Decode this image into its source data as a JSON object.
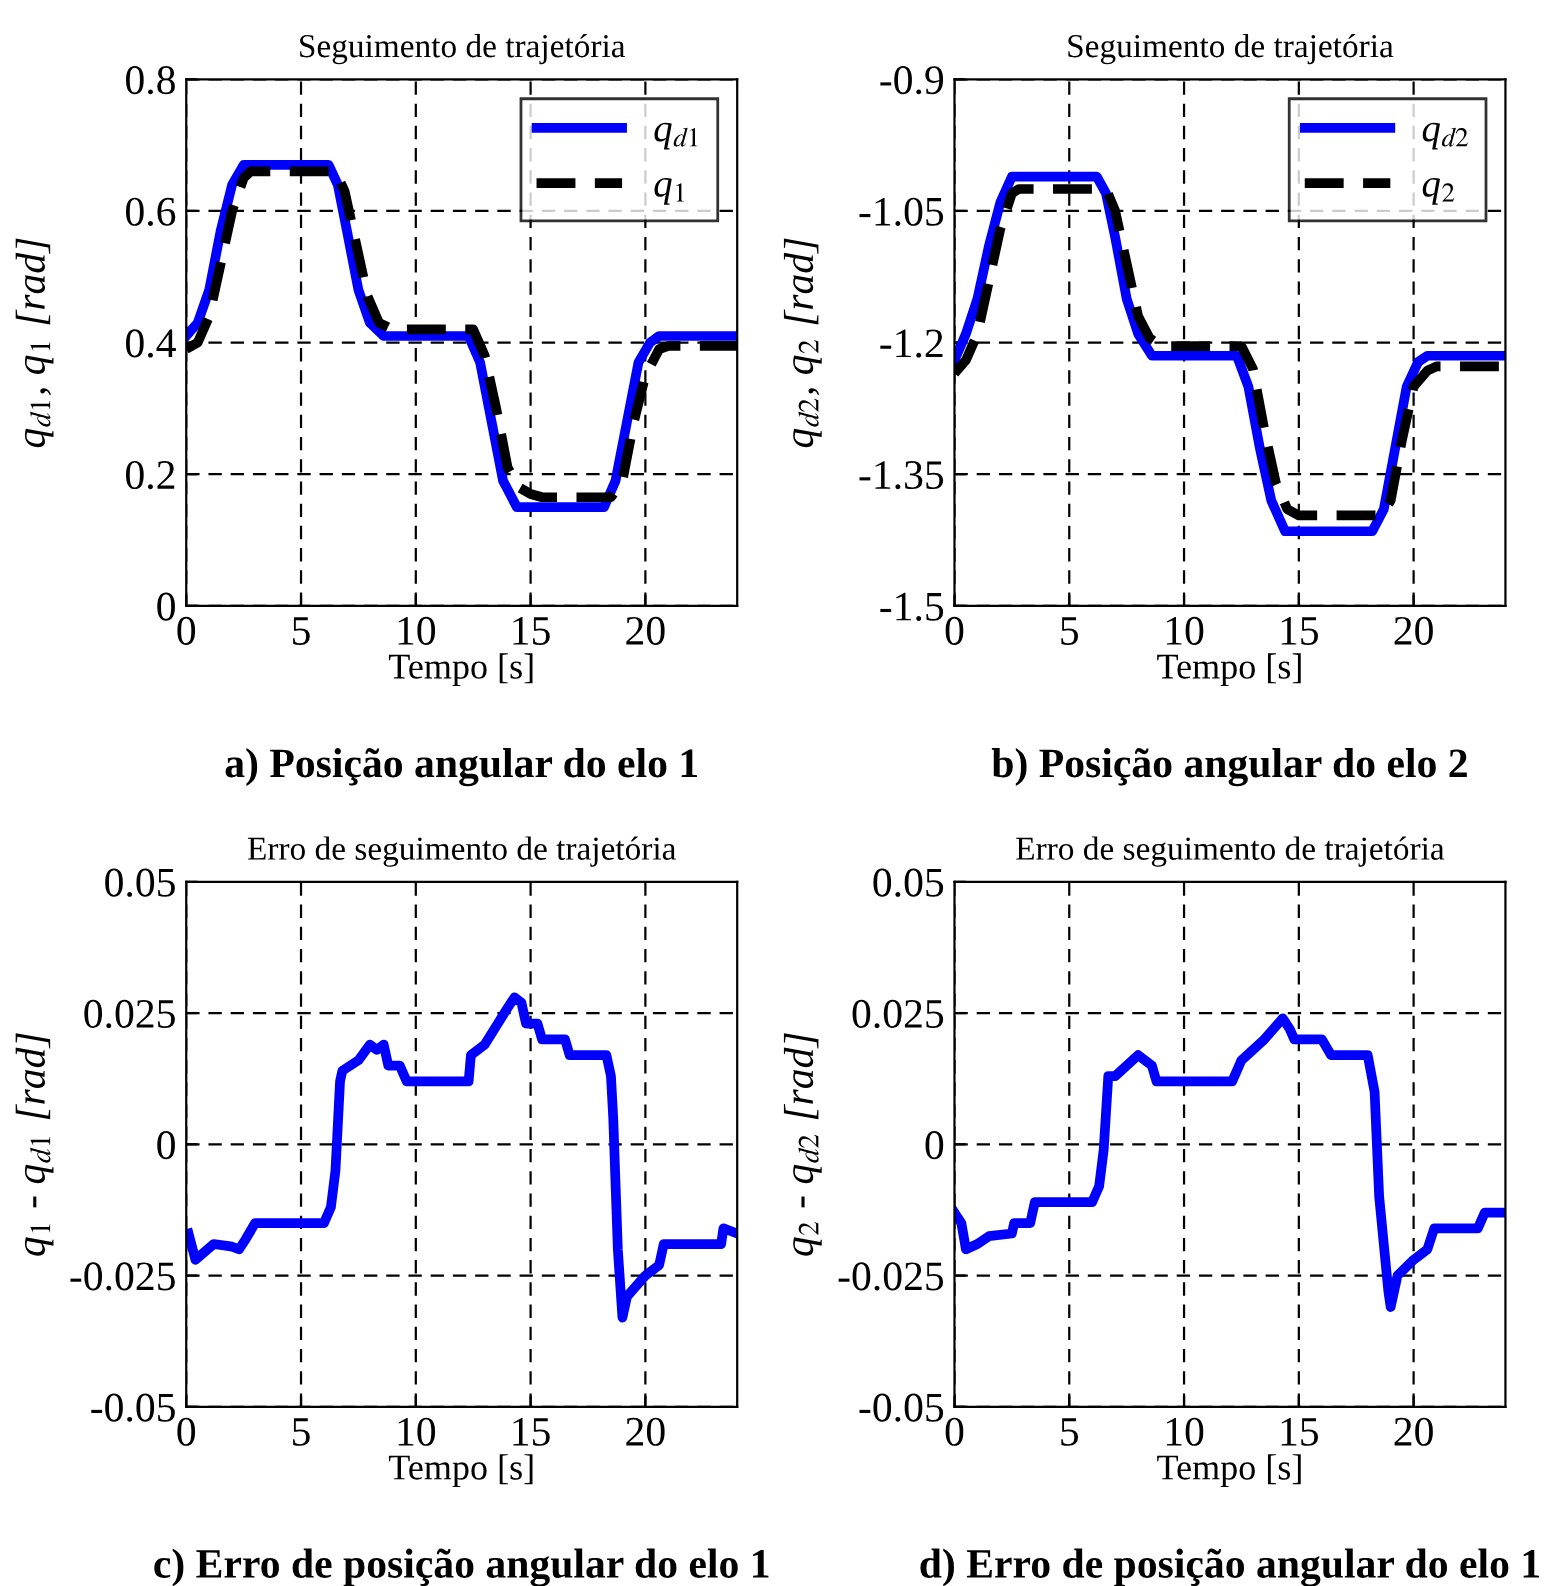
{
  "chart_data": [
    {
      "type": "line",
      "title": "Seguimento de trajetória",
      "xlabel": "Tempo [s]",
      "ylabel": "q$_{d1}$, q$_{1}$ [rad]",
      "annotations": [
        "a) Posição angular do elo 1"
      ],
      "xlim": [
        0,
        24
      ],
      "xticks": [
        0,
        5,
        10,
        15,
        20
      ],
      "ylim": [
        0,
        0.8
      ],
      "yticks": [
        0,
        0.2,
        0.4,
        0.6,
        0.8
      ],
      "grid": true,
      "legend": "top right",
      "series": [
        {
          "name": "q$_{d1}$",
          "color": "#0000ff",
          "line_style": "solid",
          "x": [
            0,
            0.5,
            1,
            1.5,
            2,
            2.5,
            6.2,
            6.6,
            7,
            7.5,
            8,
            8.6,
            12.3,
            12.8,
            13.3,
            13.8,
            14.4,
            18.2,
            18.7,
            19.2,
            19.7,
            20.2,
            20.6,
            24
          ],
          "values": [
            0.41,
            0.43,
            0.48,
            0.57,
            0.64,
            0.67,
            0.67,
            0.64,
            0.57,
            0.48,
            0.43,
            0.41,
            0.41,
            0.37,
            0.28,
            0.19,
            0.15,
            0.15,
            0.19,
            0.28,
            0.37,
            0.4,
            0.41,
            0.41
          ]
        },
        {
          "name": "q$_{1}$",
          "color": "#000000",
          "line_style": "dashed",
          "x": [
            0,
            0.5,
            1,
            1.5,
            2,
            2.5,
            2.8,
            6.5,
            6.9,
            7.4,
            7.9,
            8.4,
            9,
            12.5,
            13,
            13.5,
            14,
            14.5,
            15,
            15.5,
            18.5,
            19,
            19.5,
            20,
            20.6,
            21,
            24
          ],
          "values": [
            0.39,
            0.4,
            0.44,
            0.52,
            0.6,
            0.65,
            0.66,
            0.66,
            0.63,
            0.55,
            0.47,
            0.43,
            0.42,
            0.42,
            0.38,
            0.3,
            0.21,
            0.18,
            0.17,
            0.165,
            0.165,
            0.19,
            0.28,
            0.35,
            0.39,
            0.395,
            0.395
          ]
        }
      ]
    },
    {
      "type": "line",
      "title": "Seguimento de trajetória",
      "xlabel": "Tempo [s]",
      "ylabel": "q$_{d2}$, q$_{2}$ [rad]",
      "annotations": [
        "b) Posição angular do elo 2"
      ],
      "xlim": [
        0,
        24
      ],
      "xticks": [
        0,
        5,
        10,
        15,
        20
      ],
      "ylim": [
        -1.5,
        -0.9
      ],
      "yticks": [
        -1.5,
        -1.35,
        -1.2,
        -1.05,
        -0.9
      ],
      "grid": true,
      "legend": "top right",
      "series": [
        {
          "name": "q$_{d2}$",
          "color": "#0000ff",
          "line_style": "solid",
          "x": [
            0,
            0.5,
            1,
            1.5,
            2,
            2.5,
            6.2,
            6.6,
            7,
            7.5,
            8,
            8.6,
            12.3,
            12.8,
            13.3,
            13.8,
            14.4,
            18.2,
            18.7,
            19.2,
            19.7,
            20.2,
            20.6,
            24
          ],
          "values": [
            -1.22,
            -1.19,
            -1.15,
            -1.09,
            -1.04,
            -1.011,
            -1.011,
            -1.03,
            -1.08,
            -1.15,
            -1.19,
            -1.215,
            -1.215,
            -1.25,
            -1.32,
            -1.38,
            -1.415,
            -1.415,
            -1.39,
            -1.32,
            -1.25,
            -1.222,
            -1.215,
            -1.215
          ]
        },
        {
          "name": "q$_{2}$",
          "color": "#000000",
          "line_style": "dashed",
          "x": [
            0,
            0.5,
            1,
            1.5,
            2,
            2.5,
            2.8,
            6.6,
            7,
            7.5,
            8,
            8.5,
            9,
            12.5,
            13,
            13.5,
            14,
            14.5,
            15,
            18.6,
            19,
            19.5,
            20,
            20.6,
            21,
            24
          ],
          "values": [
            -1.235,
            -1.22,
            -1.19,
            -1.13,
            -1.07,
            -1.03,
            -1.025,
            -1.025,
            -1.05,
            -1.11,
            -1.17,
            -1.195,
            -1.204,
            -1.204,
            -1.23,
            -1.3,
            -1.36,
            -1.39,
            -1.397,
            -1.397,
            -1.38,
            -1.31,
            -1.25,
            -1.232,
            -1.227,
            -1.227
          ]
        }
      ]
    },
    {
      "type": "line",
      "title": "Erro de seguimento de trajetória",
      "xlabel": "Tempo [s]",
      "ylabel": "q$_{1}$ - q$_{d1}$ [rad]",
      "annotations": [
        "c) Erro de posição angular do elo 1"
      ],
      "xlim": [
        0,
        24
      ],
      "xticks": [
        0,
        5,
        10,
        15,
        20
      ],
      "ylim": [
        -0.05,
        0.05
      ],
      "yticks": [
        -0.05,
        -0.025,
        0,
        0.025,
        0.05
      ],
      "grid": true,
      "series": [
        {
          "color": "#0000ff",
          "line_style": "solid",
          "x": [
            0.1,
            0.4,
            1.2,
            2,
            2.3,
            2.6,
            3,
            6,
            6.3,
            6.5,
            6.7,
            6.8,
            7.5,
            8,
            8.3,
            8.6,
            8.8,
            9.3,
            9.6,
            12.3,
            12.4,
            13,
            14,
            14.3,
            14.6,
            14.8,
            15.3,
            15.5,
            16.5,
            16.7,
            18.3,
            18.5,
            18.6,
            18.8,
            19,
            19.2,
            20,
            20.6,
            20.8,
            23.3,
            23.4,
            24
          ],
          "values": [
            -0.017,
            -0.022,
            -0.019,
            -0.0195,
            -0.02,
            -0.018,
            -0.015,
            -0.015,
            -0.012,
            -0.005,
            0.012,
            0.014,
            0.016,
            0.019,
            0.018,
            0.019,
            0.015,
            0.015,
            0.012,
            0.012,
            0.017,
            0.019,
            0.026,
            0.028,
            0.027,
            0.023,
            0.023,
            0.02,
            0.02,
            0.017,
            0.017,
            0.013,
            0.005,
            -0.02,
            -0.033,
            -0.029,
            -0.025,
            -0.023,
            -0.019,
            -0.019,
            -0.016,
            -0.017
          ]
        }
      ]
    },
    {
      "type": "line",
      "title": "Erro de seguimento de trajetória",
      "xlabel": "Tempo [s]",
      "ylabel": "q$_{2}$ - q$_{d2}$ [rad]",
      "annotations": [
        "d) Erro de posição angular do elo 1"
      ],
      "xlim": [
        0,
        24
      ],
      "xticks": [
        0,
        5,
        10,
        15,
        20
      ],
      "ylim": [
        -0.05,
        0.05
      ],
      "yticks": [
        -0.05,
        -0.025,
        0,
        0.025,
        0.05
      ],
      "grid": true,
      "series": [
        {
          "color": "#0000ff",
          "line_style": "solid",
          "x": [
            0,
            0.3,
            0.5,
            1,
            1.5,
            2.5,
            2.6,
            3.3,
            3.5,
            6,
            6.3,
            6.5,
            6.7,
            7,
            7.5,
            8,
            8.6,
            8.8,
            12.1,
            12.5,
            13.5,
            14.3,
            14.6,
            14.8,
            16,
            16.4,
            18,
            18.3,
            18.5,
            18.9,
            19,
            19.3,
            20,
            20.6,
            20.9,
            22.8,
            23.1,
            24
          ],
          "values": [
            -0.013,
            -0.015,
            -0.02,
            -0.019,
            -0.0175,
            -0.017,
            -0.015,
            -0.015,
            -0.011,
            -0.011,
            -0.008,
            -0.001,
            0.013,
            0.013,
            0.015,
            0.017,
            0.015,
            0.012,
            0.012,
            0.016,
            0.02,
            0.024,
            0.022,
            0.02,
            0.02,
            0.017,
            0.017,
            0.01,
            -0.01,
            -0.028,
            -0.031,
            -0.025,
            -0.022,
            -0.02,
            -0.016,
            -0.016,
            -0.013,
            -0.013
          ]
        }
      ]
    }
  ]
}
